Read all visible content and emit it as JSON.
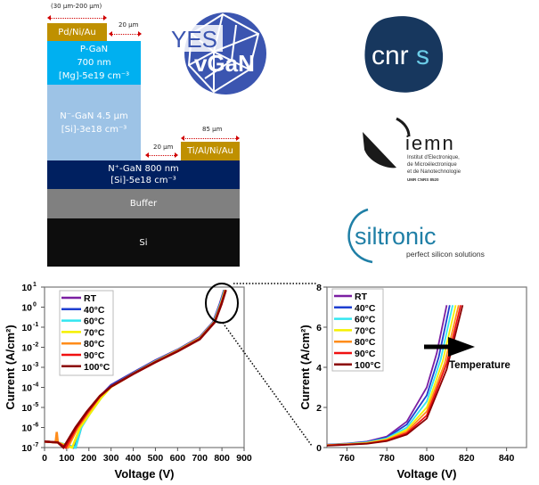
{
  "device": {
    "top_width_label": "(30 µm-200 µm)",
    "gap_top_label": "20 µm",
    "gap_bottom_label": "20 µm",
    "contact_width_label": "85 µm",
    "anode": "Pd/Ni/Au",
    "cathode": "Ti/Al/Ni/Au",
    "p_gan": [
      "P-GaN",
      "700 nm",
      "[Mg]-5e19 cm⁻³"
    ],
    "n_minus_gan": [
      "N⁻-GaN 4.5 µm",
      "[Si]-3e18 cm⁻³"
    ],
    "n_plus_gan": [
      "N⁺-GaN 800 nm",
      "[Si]-5e18 cm⁻³"
    ],
    "buffer": "Buffer",
    "substrate": "Si",
    "colors": {
      "metal": "#bf9000",
      "p_gan": "#00b0f0",
      "n_minus": "#9dc3e6",
      "n_plus": "#002060",
      "buffer": "#808080",
      "si": "#0d0d0d"
    }
  },
  "logos": {
    "yesvgan": {
      "line1": "YES",
      "line2": "vGaN",
      "color": "#3b55b0"
    },
    "cnrs": {
      "text_a": "cnr",
      "text_b": "s",
      "color": "#17375e",
      "accent": "#6ccde8"
    },
    "iemn": {
      "name": "iemn",
      "line1": "Institut d'Electronique,",
      "line2": "de Microélectronique",
      "line3": "et de Nanotechnologie",
      "line4": "UMR CNRS 8520"
    },
    "siltronic": {
      "name": "siltronic",
      "tagline": "perfect silicon solutions",
      "color": "#1f7fa6"
    }
  },
  "annotation": {
    "arrow_label": "Temperature"
  },
  "chart_data": [
    {
      "type": "line",
      "title": "",
      "xlabel": "Voltage (V)",
      "ylabel": "Current (A/cm²)",
      "xlim": [
        0,
        900
      ],
      "ylim": [
        1e-07,
        10
      ],
      "yscale": "log",
      "xticks": [
        0,
        100,
        200,
        300,
        400,
        500,
        600,
        700,
        800,
        900
      ],
      "ytick_exponents": [
        -7,
        -6,
        -5,
        -4,
        -3,
        -2,
        -1,
        0,
        1
      ],
      "legend": "top-left",
      "series": [
        {
          "name": "RT",
          "color": "#7b1fa2",
          "points": [
            [
              0,
              2e-07
            ],
            [
              60,
              1.8e-07
            ],
            [
              140,
              1e-07
            ],
            [
              165,
              1e-06
            ],
            [
              200,
              5e-06
            ],
            [
              250,
              3.5e-05
            ],
            [
              300,
              0.00013
            ],
            [
              400,
              0.00055
            ],
            [
              500,
              0.0022
            ],
            [
              600,
              0.0075
            ],
            [
              700,
              0.032
            ],
            [
              760,
              0.18
            ],
            [
              790,
              1.4
            ],
            [
              810,
              7.1
            ]
          ]
        },
        {
          "name": "40°C",
          "color": "#1e3fd0",
          "points": [
            [
              0,
              2e-07
            ],
            [
              60,
              1.8e-07
            ],
            [
              130,
              1e-07
            ],
            [
              160,
              1e-06
            ],
            [
              200,
              5e-06
            ],
            [
              250,
              3.3e-05
            ],
            [
              300,
              0.000125
            ],
            [
              400,
              0.00053
            ],
            [
              500,
              0.0021
            ],
            [
              600,
              0.0072
            ],
            [
              700,
              0.03
            ],
            [
              762,
              0.18
            ],
            [
              792,
              1.4
            ],
            [
              811,
              7.1
            ]
          ]
        },
        {
          "name": "60°C",
          "color": "#33e6f0",
          "points": [
            [
              0,
              2e-07
            ],
            [
              60,
              1.8e-07
            ],
            [
              140,
              1e-07
            ],
            [
              165,
              1e-06
            ],
            [
              205,
              5e-06
            ],
            [
              255,
              3e-05
            ],
            [
              300,
              0.00011
            ],
            [
              400,
              0.0005
            ],
            [
              500,
              0.002
            ],
            [
              600,
              0.007
            ],
            [
              700,
              0.029
            ],
            [
              763,
              0.18
            ],
            [
              793,
              1.4
            ],
            [
              813,
              7.1
            ]
          ]
        },
        {
          "name": "70°C",
          "color": "#f5f000",
          "points": [
            [
              0,
              2e-07
            ],
            [
              60,
              1.8e-07
            ],
            [
              125,
              1e-07
            ],
            [
              160,
              1e-06
            ],
            [
              205,
              5e-06
            ],
            [
              255,
              3e-05
            ],
            [
              300,
              0.000105
            ],
            [
              400,
              0.00048
            ],
            [
              500,
              0.0019
            ],
            [
              600,
              0.0068
            ],
            [
              700,
              0.028
            ],
            [
              765,
              0.18
            ],
            [
              795,
              1.4
            ],
            [
              814,
              7.1
            ]
          ]
        },
        {
          "name": "80°C",
          "color": "#ff8c1a",
          "points": [
            [
              0,
              2e-07
            ],
            [
              50,
              1.8e-07
            ],
            [
              55,
              6e-07
            ],
            [
              60,
              1.8e-07
            ],
            [
              105,
              1e-07
            ],
            [
              150,
              1e-06
            ],
            [
              200,
              6e-06
            ],
            [
              250,
              3.5e-05
            ],
            [
              300,
              0.00011
            ],
            [
              400,
              0.00048
            ],
            [
              500,
              0.0019
            ],
            [
              600,
              0.0066
            ],
            [
              700,
              0.027
            ],
            [
              766,
              0.18
            ],
            [
              796,
              1.4
            ],
            [
              816,
              7.1
            ]
          ]
        },
        {
          "name": "90°C",
          "color": "#f01010",
          "points": [
            [
              0,
              2e-07
            ],
            [
              60,
              1.8e-07
            ],
            [
              95,
              1e-07
            ],
            [
              145,
              1e-06
            ],
            [
              195,
              6e-06
            ],
            [
              250,
              3.6e-05
            ],
            [
              300,
              0.00011
            ],
            [
              400,
              0.00047
            ],
            [
              500,
              0.0018
            ],
            [
              600,
              0.0064
            ],
            [
              700,
              0.026
            ],
            [
              767,
              0.18
            ],
            [
              797,
              1.4
            ],
            [
              817,
              7.1
            ]
          ]
        },
        {
          "name": "100°C",
          "color": "#8b0000",
          "points": [
            [
              0,
              2e-07
            ],
            [
              60,
              1.8e-07
            ],
            [
              85,
              1e-07
            ],
            [
              140,
              1e-06
            ],
            [
              190,
              6e-06
            ],
            [
              250,
              3.8e-05
            ],
            [
              300,
              0.00011
            ],
            [
              400,
              0.00047
            ],
            [
              500,
              0.0018
            ],
            [
              600,
              0.0062
            ],
            [
              700,
              0.025
            ],
            [
              768,
              0.18
            ],
            [
              798,
              1.4
            ],
            [
              818,
              7.1
            ]
          ]
        }
      ]
    },
    {
      "type": "line",
      "title": "",
      "xlabel": "Voltage (V)",
      "ylabel": "Current (A/cm²)",
      "xlim": [
        750,
        850
      ],
      "ylim": [
        0,
        8
      ],
      "xticks": [
        760,
        780,
        800,
        820,
        840
      ],
      "yticks": [
        0,
        2,
        4,
        6,
        8
      ],
      "legend": "top-left",
      "series": [
        {
          "name": "RT",
          "color": "#7b1fa2",
          "points": [
            [
              750,
              0.15
            ],
            [
              760,
              0.2
            ],
            [
              770,
              0.3
            ],
            [
              780,
              0.55
            ],
            [
              790,
              1.3
            ],
            [
              800,
              3.0
            ],
            [
              805,
              4.7
            ],
            [
              810,
              7.1
            ]
          ]
        },
        {
          "name": "40°C",
          "color": "#1e3fd0",
          "points": [
            [
              750,
              0.14
            ],
            [
              760,
              0.19
            ],
            [
              770,
              0.28
            ],
            [
              780,
              0.5
            ],
            [
              790,
              1.15
            ],
            [
              800,
              2.6
            ],
            [
              806,
              4.5
            ],
            [
              811.5,
              7.1
            ]
          ]
        },
        {
          "name": "60°C",
          "color": "#33e6f0",
          "points": [
            [
              750,
              0.14
            ],
            [
              760,
              0.18
            ],
            [
              770,
              0.26
            ],
            [
              780,
              0.46
            ],
            [
              790,
              1.0
            ],
            [
              800,
              2.3
            ],
            [
              807,
              4.4
            ],
            [
              813,
              7.1
            ]
          ]
        },
        {
          "name": "70°C",
          "color": "#f5f000",
          "points": [
            [
              750,
              0.13
            ],
            [
              760,
              0.17
            ],
            [
              770,
              0.24
            ],
            [
              780,
              0.42
            ],
            [
              790,
              0.9
            ],
            [
              800,
              2.0
            ],
            [
              808,
              4.3
            ],
            [
              814.5,
              7.1
            ]
          ]
        },
        {
          "name": "80°C",
          "color": "#ff8c1a",
          "points": [
            [
              750,
              0.12
            ],
            [
              760,
              0.16
            ],
            [
              770,
              0.22
            ],
            [
              780,
              0.38
            ],
            [
              790,
              0.8
            ],
            [
              800,
              1.8
            ],
            [
              809,
              4.2
            ],
            [
              816,
              7.1
            ]
          ]
        },
        {
          "name": "90°C",
          "color": "#f01010",
          "points": [
            [
              750,
              0.11
            ],
            [
              760,
              0.15
            ],
            [
              770,
              0.2
            ],
            [
              780,
              0.35
            ],
            [
              790,
              0.72
            ],
            [
              800,
              1.6
            ],
            [
              810,
              4.2
            ],
            [
              817,
              7.1
            ]
          ]
        },
        {
          "name": "100°C",
          "color": "#8b0000",
          "points": [
            [
              750,
              0.1
            ],
            [
              760,
              0.14
            ],
            [
              770,
              0.19
            ],
            [
              780,
              0.32
            ],
            [
              790,
              0.65
            ],
            [
              800,
              1.45
            ],
            [
              810,
              3.9
            ],
            [
              818,
              7.1
            ]
          ]
        }
      ]
    }
  ]
}
